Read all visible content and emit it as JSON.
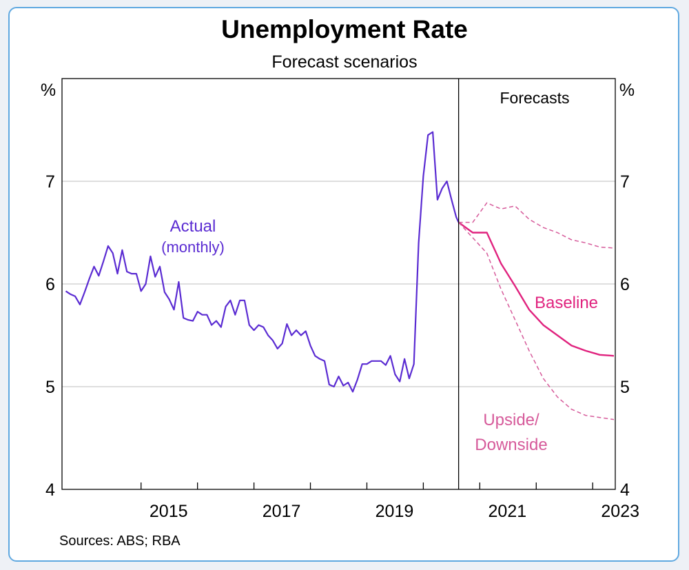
{
  "chart_data": {
    "type": "line",
    "title": "Unemployment Rate",
    "subtitle": "Forecast scenarios",
    "ylabel_left": "%",
    "ylabel_right": "%",
    "ylim": [
      4,
      8
    ],
    "yticks": [
      4,
      5,
      6,
      7
    ],
    "xlim": [
      2013.6,
      2023.4
    ],
    "xticks": [
      2015,
      2016,
      2017,
      2018,
      2019,
      2020,
      2021,
      2022,
      2023
    ],
    "xtick_labels": [
      "2015",
      "",
      "2017",
      "",
      "2019",
      "",
      "2021",
      "",
      "2023"
    ],
    "grid": "horizontal",
    "forecast_start": 2020.625,
    "forecast_label": "Forecasts",
    "source": "Sources: ABS; RBA",
    "colors": {
      "actual": "#5a2bd2",
      "baseline": "#e0227e",
      "range": "#d65a9a",
      "grid": "#bdbdbd",
      "axis": "#000000"
    },
    "series": [
      {
        "name": "Actual",
        "label_line1": "Actual",
        "label_line2": "(monthly)",
        "style": "solid",
        "x": [
          2013.667,
          2013.75,
          2013.833,
          2013.917,
          2014.0,
          2014.083,
          2014.167,
          2014.25,
          2014.333,
          2014.417,
          2014.5,
          2014.583,
          2014.667,
          2014.75,
          2014.833,
          2014.917,
          2015.0,
          2015.083,
          2015.167,
          2015.25,
          2015.333,
          2015.417,
          2015.5,
          2015.583,
          2015.667,
          2015.75,
          2015.833,
          2015.917,
          2016.0,
          2016.083,
          2016.167,
          2016.25,
          2016.333,
          2016.417,
          2016.5,
          2016.583,
          2016.667,
          2016.75,
          2016.833,
          2016.917,
          2017.0,
          2017.083,
          2017.167,
          2017.25,
          2017.333,
          2017.417,
          2017.5,
          2017.583,
          2017.667,
          2017.75,
          2017.833,
          2017.917,
          2018.0,
          2018.083,
          2018.167,
          2018.25,
          2018.333,
          2018.417,
          2018.5,
          2018.583,
          2018.667,
          2018.75,
          2018.833,
          2018.917,
          2019.0,
          2019.083,
          2019.167,
          2019.25,
          2019.333,
          2019.417,
          2019.5,
          2019.583,
          2019.667,
          2019.75,
          2019.833,
          2019.917,
          2020.0,
          2020.083,
          2020.167,
          2020.25,
          2020.333,
          2020.417,
          2020.5,
          2020.583,
          2020.625
        ],
        "values": [
          5.93,
          5.9,
          5.88,
          5.8,
          5.92,
          6.05,
          6.17,
          6.08,
          6.22,
          6.37,
          6.3,
          6.1,
          6.33,
          6.12,
          6.1,
          6.1,
          5.93,
          6.0,
          6.27,
          6.07,
          6.17,
          5.92,
          5.85,
          5.75,
          6.02,
          5.67,
          5.65,
          5.64,
          5.73,
          5.7,
          5.7,
          5.6,
          5.64,
          5.58,
          5.78,
          5.84,
          5.7,
          5.84,
          5.84,
          5.6,
          5.55,
          5.6,
          5.58,
          5.5,
          5.45,
          5.37,
          5.42,
          5.61,
          5.5,
          5.55,
          5.5,
          5.54,
          5.4,
          5.3,
          5.27,
          5.25,
          5.02,
          5.0,
          5.1,
          5.01,
          5.04,
          4.95,
          5.07,
          5.22,
          5.22,
          5.25,
          5.25,
          5.25,
          5.21,
          5.3,
          5.12,
          5.05,
          5.27,
          5.08,
          5.22,
          6.4,
          7.05,
          7.45,
          7.48,
          6.82,
          6.93,
          7.0,
          6.82,
          6.65,
          6.6
        ]
      },
      {
        "name": "Baseline",
        "label": "Baseline",
        "style": "solid",
        "x": [
          2020.625,
          2020.875,
          2021.125,
          2021.375,
          2021.625,
          2021.875,
          2022.125,
          2022.375,
          2022.625,
          2022.875,
          2023.125,
          2023.375
        ],
        "values": [
          6.6,
          6.5,
          6.5,
          6.2,
          5.98,
          5.75,
          5.6,
          5.5,
          5.4,
          5.35,
          5.31,
          5.3
        ]
      },
      {
        "name": "Upside",
        "style": "dashed",
        "x": [
          2020.625,
          2020.875,
          2021.125,
          2021.375,
          2021.625,
          2021.875,
          2022.125,
          2022.375,
          2022.625,
          2022.875,
          2023.125,
          2023.375
        ],
        "values": [
          6.6,
          6.6,
          6.79,
          6.73,
          6.76,
          6.63,
          6.55,
          6.5,
          6.43,
          6.4,
          6.36,
          6.35
        ]
      },
      {
        "name": "Downside",
        "style": "dashed",
        "x": [
          2020.625,
          2020.875,
          2021.125,
          2021.375,
          2021.625,
          2021.875,
          2022.125,
          2022.375,
          2022.625,
          2022.875,
          2023.125,
          2023.375
        ],
        "values": [
          6.6,
          6.45,
          6.3,
          5.95,
          5.65,
          5.35,
          5.08,
          4.9,
          4.78,
          4.72,
          4.7,
          4.68
        ]
      }
    ],
    "range_label_line1": "Upside/",
    "range_label_line2": "Downside"
  }
}
